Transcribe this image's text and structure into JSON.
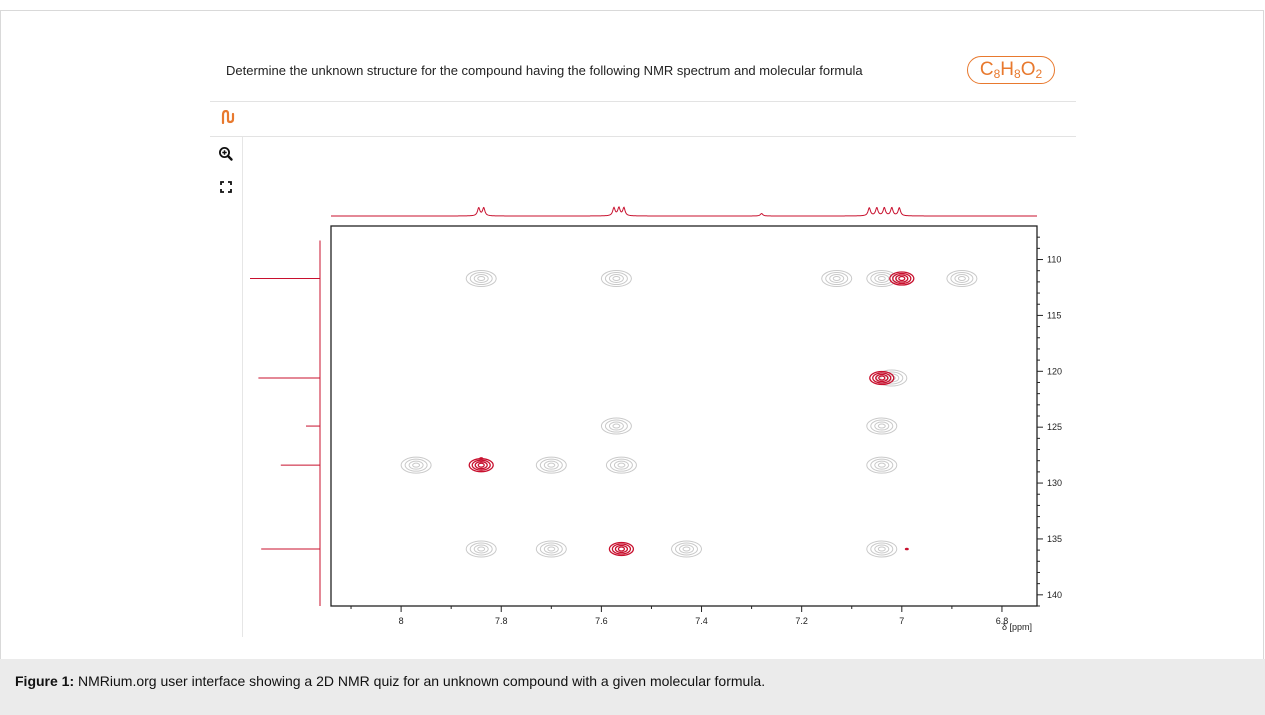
{
  "header": {
    "question": "Determine the unknown structure for the compound having the following NMR spectrum and molecular formula",
    "formula": {
      "c_count": "8",
      "h_count": "8",
      "o_count": "2"
    }
  },
  "toolbar": {
    "logo_icon": "nmrium-logo-icon",
    "zoom_icon": "zoom-in-icon",
    "fullscreen_icon": "fullscreen-icon",
    "accent_color": "#e8792e"
  },
  "chart_data": {
    "type": "heatmap",
    "xlabel": "δ [ppm]",
    "x_ticks": [
      "8",
      "7.8",
      "7.6",
      "7.4",
      "7.2",
      "7",
      "6.8"
    ],
    "y_ticks": [
      "110",
      "115",
      "120",
      "125",
      "130",
      "135",
      "140"
    ],
    "x_range": [
      8.14,
      6.73
    ],
    "y_range": [
      107.0,
      141.0
    ],
    "x_reversed": true,
    "cross_peaks_red": [
      {
        "x": 7.0,
        "y": 111.7
      },
      {
        "x": 7.04,
        "y": 120.6
      },
      {
        "x": 7.84,
        "y": 128.4
      },
      {
        "x": 7.56,
        "y": 135.9
      }
    ],
    "small_red_dots": [
      {
        "x": 7.84,
        "y": 127.8
      },
      {
        "x": 6.99,
        "y": 135.9
      }
    ],
    "cross_peaks_gray": [
      {
        "x": 7.84,
        "y": 111.7
      },
      {
        "x": 7.57,
        "y": 111.7
      },
      {
        "x": 7.13,
        "y": 111.7
      },
      {
        "x": 7.04,
        "y": 111.7
      },
      {
        "x": 6.88,
        "y": 111.7
      },
      {
        "x": 7.02,
        "y": 120.6
      },
      {
        "x": 7.57,
        "y": 124.9
      },
      {
        "x": 7.04,
        "y": 124.9
      },
      {
        "x": 7.97,
        "y": 128.4
      },
      {
        "x": 7.7,
        "y": 128.4
      },
      {
        "x": 7.56,
        "y": 128.4
      },
      {
        "x": 7.04,
        "y": 128.4
      },
      {
        "x": 7.84,
        "y": 135.9
      },
      {
        "x": 7.7,
        "y": 135.9
      },
      {
        "x": 7.43,
        "y": 135.9
      },
      {
        "x": 7.04,
        "y": 135.9
      }
    ],
    "f2_projection_peaks": [
      7.845,
      7.835,
      7.575,
      7.565,
      7.555,
      7.28,
      7.065,
      7.05,
      7.035,
      7.02,
      7.005
    ],
    "f1_projection_peaks": [
      {
        "y": 111.7,
        "intensity": 1.0
      },
      {
        "y": 120.6,
        "intensity": 0.88
      },
      {
        "y": 124.9,
        "intensity": 0.2
      },
      {
        "y": 128.4,
        "intensity": 0.56
      },
      {
        "y": 135.9,
        "intensity": 0.84
      }
    ],
    "colors": {
      "positive": "#c8102e",
      "gray": "#c9c9c9",
      "axis": "#222222"
    }
  },
  "caption": {
    "label": "Figure 1:",
    "text": " NMRium.org user interface showing a 2D NMR quiz for an unknown compound with a given molecular formula."
  }
}
